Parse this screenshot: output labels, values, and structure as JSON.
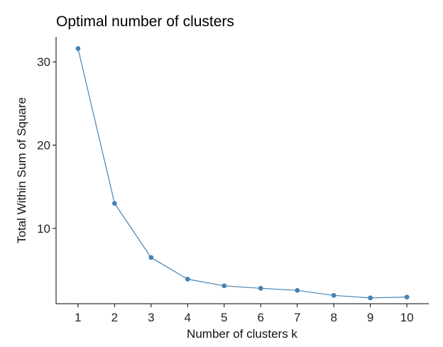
{
  "chart_data": {
    "type": "line",
    "title": "Optimal number of clusters",
    "xlabel": "Number of clusters k",
    "ylabel": "Total Within Sum of Square",
    "x": [
      1,
      2,
      3,
      4,
      5,
      6,
      7,
      8,
      9,
      10
    ],
    "series": [
      {
        "values": [
          31.6,
          13.0,
          6.5,
          3.9,
          3.1,
          2.8,
          2.55,
          1.95,
          1.65,
          1.75
        ]
      }
    ],
    "xticks": [
      "1",
      "2",
      "3",
      "4",
      "5",
      "6",
      "7",
      "8",
      "9",
      "10"
    ],
    "yticks": [
      "10",
      "20",
      "30"
    ],
    "xlim": [
      0.4,
      10.6
    ],
    "ylim": [
      0.95,
      33.0
    ],
    "grid": false,
    "legend": "none",
    "colors": {
      "series": "#4682B4",
      "axis": "#000000"
    }
  }
}
